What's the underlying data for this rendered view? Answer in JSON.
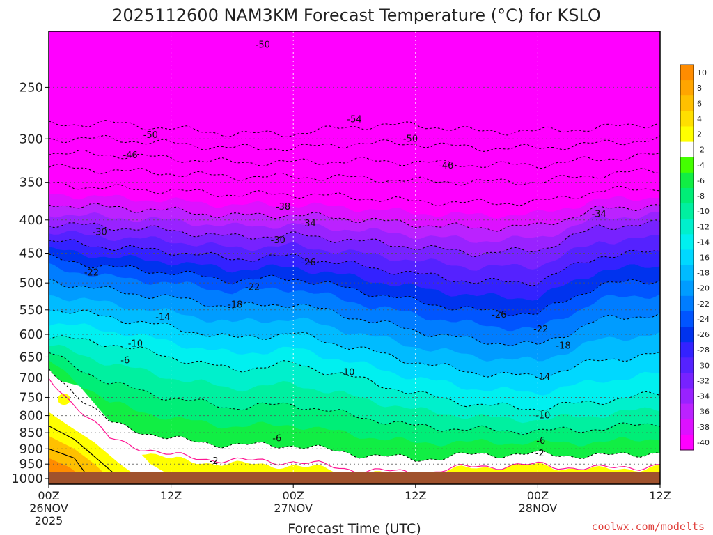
{
  "title": "2025112600 NAM3KM Forecast Temperature (°C) for KSLO",
  "credit": "coolwx.com/modelts",
  "chart_data": {
    "type": "heatmap",
    "title": "2025112600 NAM3KM Forecast Temperature (°C) for KSLO",
    "xlabel": "Forecast Time (UTC)",
    "ylabel": "",
    "y_scale": "log",
    "y_reversed": true,
    "grid": true,
    "xlim": [
      0,
      60
    ],
    "ylim": [
      1000,
      200
    ],
    "x_ticks": [
      {
        "x": 0,
        "labels": [
          "00Z",
          "26NOV",
          "2025"
        ]
      },
      {
        "x": 12,
        "labels": [
          "12Z"
        ]
      },
      {
        "x": 24,
        "labels": [
          "00Z",
          "27NOV"
        ]
      },
      {
        "x": 36,
        "labels": [
          "12Z"
        ]
      },
      {
        "x": 48,
        "labels": [
          "00Z",
          "28NOV"
        ]
      },
      {
        "x": 60,
        "labels": [
          "12Z"
        ]
      }
    ],
    "y_ticks": [
      250,
      300,
      350,
      400,
      450,
      500,
      550,
      600,
      650,
      700,
      750,
      800,
      850,
      900,
      950,
      1000
    ],
    "colorbar": {
      "levels": [
        10,
        8,
        6,
        4,
        2,
        -2,
        -4,
        -6,
        -8,
        -10,
        -12,
        -14,
        -16,
        -18,
        -20,
        -22,
        -24,
        -26,
        -28,
        -30,
        -32,
        -34,
        -36,
        -38,
        -40
      ],
      "colors": [
        "#ff8c00",
        "#ffa500",
        "#ffc000",
        "#ffdf00",
        "#ffff00",
        "#ffffff",
        "#44ff00",
        "#11ee44",
        "#00ee77",
        "#00f0a0",
        "#00f0cc",
        "#00f0f0",
        "#00d8ff",
        "#00bbff",
        "#009cff",
        "#007dff",
        "#0055ff",
        "#0033ee",
        "#3322ff",
        "#5522ff",
        "#7722ff",
        "#9922ff",
        "#bb22ff",
        "#dd11ff",
        "#ff00ff"
      ]
    },
    "isotherm_profiles": [
      {
        "x": 0,
        "t_min50": 300,
        "t_min40": 340,
        "t_min30": 405,
        "t_min20": 472,
        "t_min10": 605,
        "t_0": 700
      },
      {
        "x": 6,
        "t_min50": 300,
        "t_min40": 345,
        "t_min30": 410,
        "t_min20": 490,
        "t_min10": 620,
        "t_0": 880
      },
      {
        "x": 12,
        "t_min50": 305,
        "t_min40": 348,
        "t_min30": 415,
        "t_min20": 500,
        "t_min10": 650,
        "t_0": 935
      },
      {
        "x": 18,
        "t_min50": 310,
        "t_min40": 352,
        "t_min30": 425,
        "t_min20": 515,
        "t_min10": 680,
        "t_0": 950
      },
      {
        "x": 24,
        "t_min50": 310,
        "t_min40": 352,
        "t_min30": 422,
        "t_min20": 510,
        "t_min10": 665,
        "t_0": 955
      },
      {
        "x": 30,
        "t_min50": 305,
        "t_min40": 355,
        "t_min30": 430,
        "t_min20": 535,
        "t_min10": 700,
        "t_0": 980
      },
      {
        "x": 36,
        "t_min50": 305,
        "t_min40": 360,
        "t_min30": 440,
        "t_min20": 560,
        "t_min10": 740,
        "t_0": 990
      },
      {
        "x": 42,
        "t_min50": 310,
        "t_min40": 360,
        "t_min30": 450,
        "t_min20": 580,
        "t_min10": 770,
        "t_0": 960
      },
      {
        "x": 48,
        "t_min50": 310,
        "t_min40": 360,
        "t_min30": 445,
        "t_min20": 590,
        "t_min10": 780,
        "t_0": 955
      },
      {
        "x": 54,
        "t_min50": 305,
        "t_min40": 350,
        "t_min30": 410,
        "t_min20": 530,
        "t_min10": 760,
        "t_0": 970
      },
      {
        "x": 60,
        "t_min50": 300,
        "t_min40": 345,
        "t_min30": 405,
        "t_min20": 520,
        "t_min10": 740,
        "t_0": 960
      }
    ],
    "contour_labels": [
      {
        "text": "-50",
        "x": 21.0,
        "p": 215
      },
      {
        "text": "-54",
        "x": 30.0,
        "p": 280
      },
      {
        "text": "-50",
        "x": 10.0,
        "p": 296
      },
      {
        "text": "-50",
        "x": 35.5,
        "p": 300
      },
      {
        "text": "-46",
        "x": 8.0,
        "p": 318
      },
      {
        "text": "-46",
        "x": 39.0,
        "p": 330
      },
      {
        "text": "-38",
        "x": 23.0,
        "p": 382
      },
      {
        "text": "-34",
        "x": 25.5,
        "p": 405
      },
      {
        "text": "-34",
        "x": 54.0,
        "p": 392
      },
      {
        "text": "-30",
        "x": 5.0,
        "p": 418
      },
      {
        "text": "-30",
        "x": 22.5,
        "p": 430
      },
      {
        "text": "-26",
        "x": 25.5,
        "p": 465
      },
      {
        "text": "-22",
        "x": 4.2,
        "p": 482
      },
      {
        "text": "-22",
        "x": 20.0,
        "p": 508
      },
      {
        "text": "-26",
        "x": 44.2,
        "p": 560
      },
      {
        "text": "-18",
        "x": 18.3,
        "p": 540
      },
      {
        "text": "-14",
        "x": 11.2,
        "p": 565
      },
      {
        "text": "-22",
        "x": 48.3,
        "p": 590
      },
      {
        "text": "-10",
        "x": 8.5,
        "p": 620
      },
      {
        "text": "-18",
        "x": 50.5,
        "p": 625
      },
      {
        "text": "-6",
        "x": 7.5,
        "p": 658
      },
      {
        "text": "-10",
        "x": 29.3,
        "p": 686
      },
      {
        "text": "-14",
        "x": 48.5,
        "p": 698
      },
      {
        "text": "-10",
        "x": 48.5,
        "p": 800
      },
      {
        "text": "-6",
        "x": 22.4,
        "p": 868
      },
      {
        "text": "-6",
        "x": 48.3,
        "p": 875
      },
      {
        "text": "-2",
        "x": 16.2,
        "p": 940
      },
      {
        "text": "-2",
        "x": 48.2,
        "p": 915
      }
    ]
  }
}
